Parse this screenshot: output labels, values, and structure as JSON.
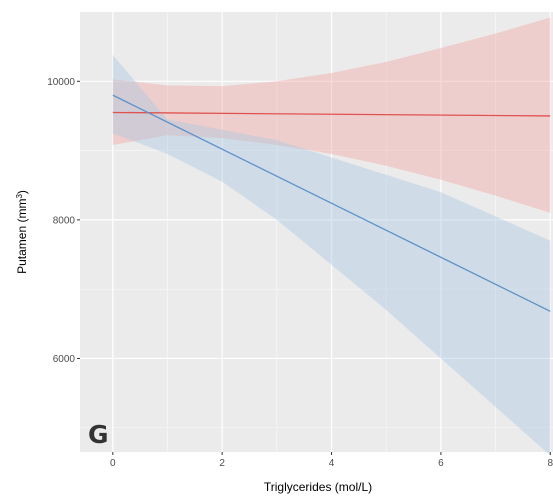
{
  "panel_label": "G",
  "colors": {
    "panel_bg": "#ebebeb",
    "grid_major": "#ffffff",
    "red_line": "#e0524f",
    "red_band": "#f4a6a3",
    "blue_line": "#5b8fc9",
    "blue_band": "#a9c7e2"
  },
  "chart_data": {
    "type": "line",
    "title": "",
    "xlabel": "Triglycerides (mol/L)",
    "ylabel_main": "Putamen (mm",
    "ylabel_sup": "3",
    "ylabel_close": ")",
    "xlim": [
      -0.6,
      8.05
    ],
    "ylim": [
      4650,
      11000
    ],
    "xticks": [
      0,
      2,
      4,
      6,
      8
    ],
    "yticks": [
      6000,
      8000,
      10000
    ],
    "xtick_labels": [
      "0",
      "2",
      "4",
      "6",
      "8"
    ],
    "ytick_labels": [
      "6000",
      "8000",
      "10000"
    ],
    "grid": true,
    "legend": "none",
    "series": [
      {
        "color": "red",
        "x": [
          0,
          8
        ],
        "y": [
          9550,
          9500
        ],
        "band": {
          "x": [
            0,
            1,
            2,
            3,
            4,
            5,
            6,
            7,
            8
          ],
          "lower": [
            9080,
            9220,
            9180,
            9080,
            8950,
            8780,
            8580,
            8350,
            8100
          ],
          "upper": [
            10030,
            9940,
            9930,
            10000,
            10120,
            10280,
            10480,
            10690,
            10920
          ]
        }
      },
      {
        "color": "blue",
        "x": [
          0,
          8
        ],
        "y": [
          9800,
          6680
        ],
        "band": {
          "x": [
            0,
            1,
            2,
            3,
            4,
            5,
            6,
            7,
            8
          ],
          "lower": [
            9250,
            8950,
            8550,
            8000,
            7350,
            6700,
            6000,
            5300,
            4600
          ],
          "upper": [
            10380,
            9450,
            9300,
            9150,
            8900,
            8650,
            8400,
            8050,
            7700
          ]
        }
      }
    ]
  }
}
